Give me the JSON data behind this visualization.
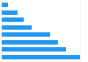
{
  "values": [
    1.0,
    0.82,
    0.72,
    0.62,
    0.38,
    0.28,
    0.2,
    0.08
  ],
  "bar_color": "#2196f3",
  "background_color": "#ffffff",
  "grid_color": "#e8e8e8",
  "xlim": [
    0,
    1.08
  ],
  "bar_height": 0.55
}
